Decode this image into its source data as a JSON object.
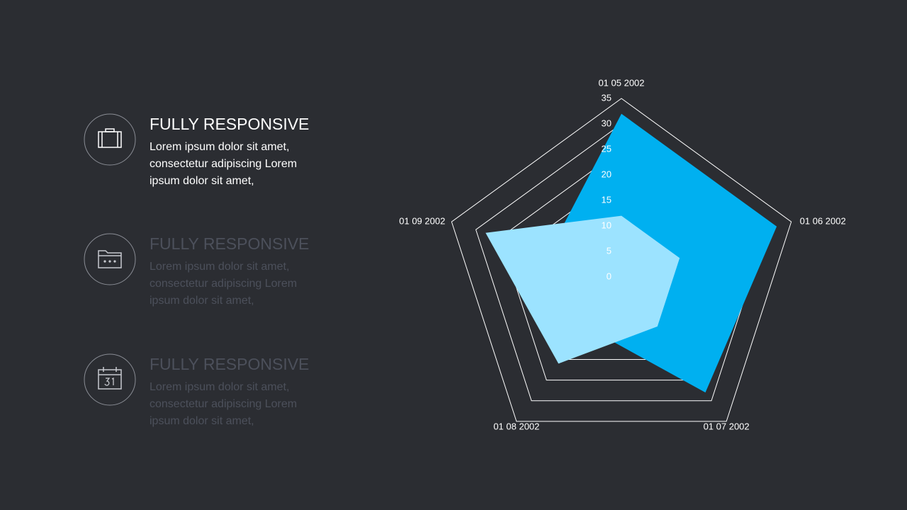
{
  "features": [
    {
      "title": "FULLY RESPONSIVE",
      "text": "Lorem ipsum dolor sit amet, consectetur adipiscing Lorem ipsum dolor sit amet,"
    },
    {
      "title": "FULLY RESPONSIVE",
      "text": "Lorem ipsum dolor sit amet, consectetur adipiscing Lorem ipsum dolor sit amet,"
    },
    {
      "title": "FULLY RESPONSIVE",
      "text": "Lorem ipsum dolor sit amet, consectetur adipiscing Lorem ipsum dolor sit amet,"
    }
  ],
  "chart_data": {
    "type": "radar",
    "categories": [
      "01 05 2002",
      "01 06 2002",
      "01 07 2002",
      "01 08 2002",
      "01 09 2002"
    ],
    "series": [
      {
        "color": "#00b0f0",
        "values": [
          32,
          32,
          28,
          12,
          15
        ]
      },
      {
        "color": "#9ce3ff",
        "values": [
          12,
          12,
          12,
          21,
          28
        ]
      }
    ],
    "ylim": [
      0,
      35
    ],
    "yticks": [
      0,
      5,
      10,
      15,
      20,
      25,
      30,
      35
    ],
    "grid": true
  }
}
